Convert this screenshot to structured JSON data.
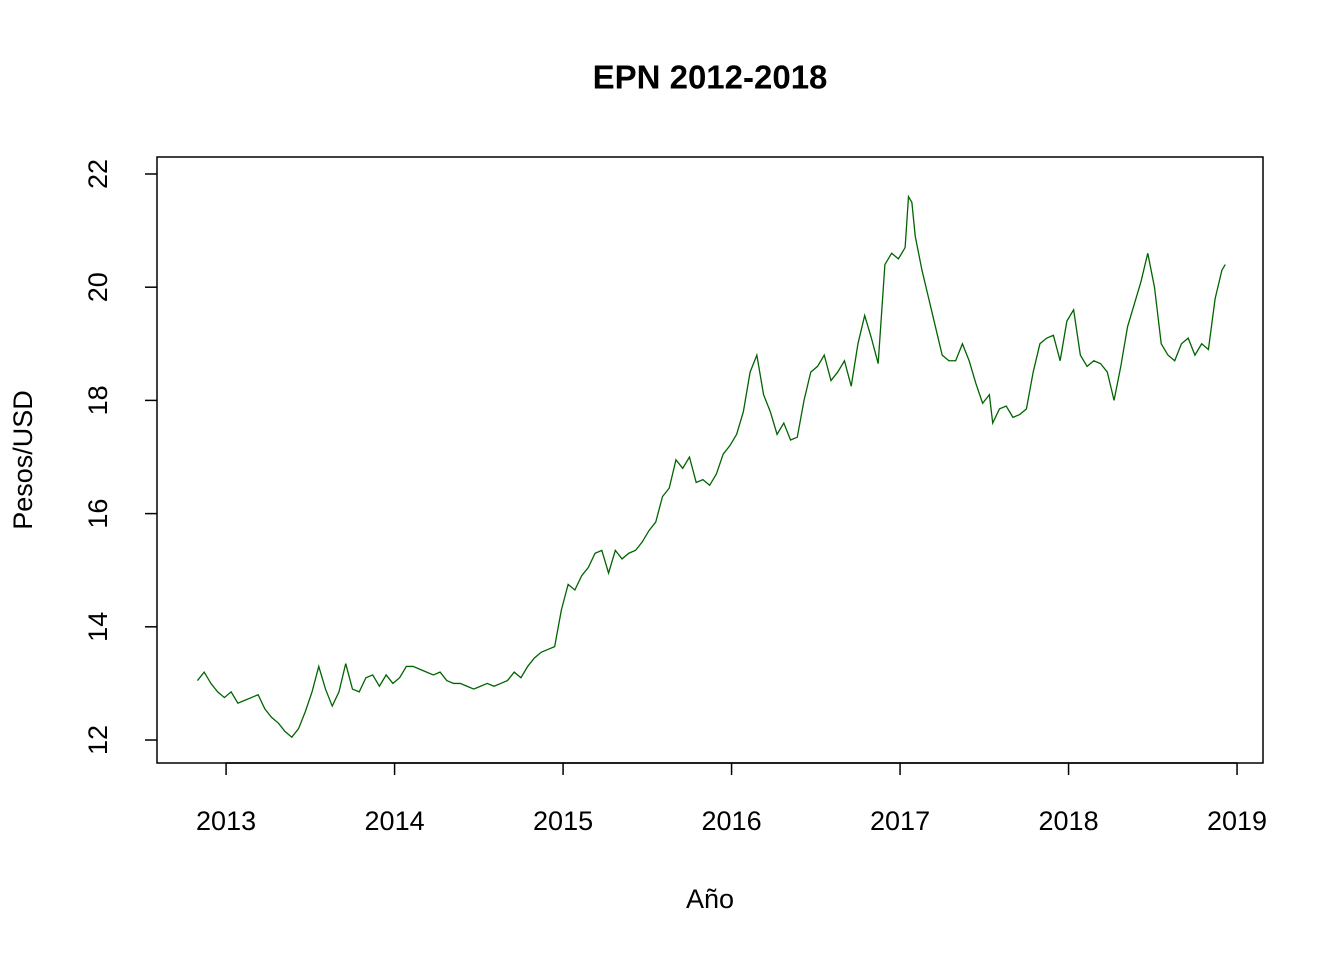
{
  "chart_data": {
    "type": "line",
    "title": "EPN 2012-2018",
    "x_label": "Año",
    "y_label": "Pesos/USD",
    "color": "#006400",
    "xlim": [
      2012.59,
      2019.154
    ],
    "ylim": [
      11.594,
      22.3
    ],
    "xticks": [
      2013,
      2014,
      2015,
      2016,
      2017,
      2018,
      2019
    ],
    "yticks": [
      12,
      14,
      16,
      18,
      20,
      22
    ],
    "x": [
      2012.83,
      2012.87,
      2012.91,
      2012.95,
      2012.99,
      2013.03,
      2013.07,
      2013.11,
      2013.15,
      2013.19,
      2013.23,
      2013.27,
      2013.31,
      2013.35,
      2013.39,
      2013.43,
      2013.47,
      2013.51,
      2013.55,
      2013.59,
      2013.63,
      2013.67,
      2013.71,
      2013.75,
      2013.79,
      2013.83,
      2013.87,
      2013.91,
      2013.95,
      2013.99,
      2014.03,
      2014.07,
      2014.11,
      2014.15,
      2014.19,
      2014.23,
      2014.27,
      2014.31,
      2014.35,
      2014.39,
      2014.43,
      2014.47,
      2014.51,
      2014.55,
      2014.59,
      2014.63,
      2014.67,
      2014.71,
      2014.75,
      2014.79,
      2014.83,
      2014.87,
      2014.91,
      2014.95,
      2014.99,
      2015.03,
      2015.07,
      2015.11,
      2015.15,
      2015.19,
      2015.23,
      2015.27,
      2015.31,
      2015.35,
      2015.39,
      2015.43,
      2015.47,
      2015.51,
      2015.55,
      2015.59,
      2015.63,
      2015.67,
      2015.71,
      2015.75,
      2015.79,
      2015.83,
      2015.87,
      2015.91,
      2015.95,
      2015.99,
      2016.03,
      2016.07,
      2016.11,
      2016.15,
      2016.19,
      2016.23,
      2016.27,
      2016.31,
      2016.35,
      2016.39,
      2016.43,
      2016.47,
      2016.51,
      2016.55,
      2016.59,
      2016.63,
      2016.67,
      2016.71,
      2016.75,
      2016.79,
      2016.83,
      2016.87,
      2016.91,
      2016.95,
      2016.99,
      2017.03,
      2017.05,
      2017.07,
      2017.09,
      2017.13,
      2017.17,
      2017.21,
      2017.25,
      2017.29,
      2017.33,
      2017.37,
      2017.41,
      2017.45,
      2017.49,
      2017.53,
      2017.55,
      2017.59,
      2017.63,
      2017.67,
      2017.71,
      2017.75,
      2017.79,
      2017.83,
      2017.87,
      2017.91,
      2017.95,
      2017.99,
      2018.03,
      2018.07,
      2018.11,
      2018.15,
      2018.19,
      2018.23,
      2018.27,
      2018.31,
      2018.35,
      2018.39,
      2018.43,
      2018.47,
      2018.51,
      2018.55,
      2018.59,
      2018.63,
      2018.67,
      2018.71,
      2018.75,
      2018.79,
      2018.83,
      2018.87,
      2018.91,
      2018.93
    ],
    "values": [
      13.05,
      13.2,
      13.0,
      12.85,
      12.75,
      12.85,
      12.65,
      12.7,
      12.75,
      12.8,
      12.55,
      12.4,
      12.3,
      12.15,
      12.05,
      12.2,
      12.5,
      12.85,
      13.3,
      12.9,
      12.6,
      12.85,
      13.35,
      12.9,
      12.85,
      13.1,
      13.15,
      12.95,
      13.15,
      13.0,
      13.1,
      13.3,
      13.3,
      13.25,
      13.2,
      13.15,
      13.2,
      13.05,
      13.0,
      13.0,
      12.95,
      12.9,
      12.95,
      13.0,
      12.95,
      13.0,
      13.05,
      13.2,
      13.1,
      13.3,
      13.45,
      13.55,
      13.6,
      13.65,
      14.3,
      14.75,
      14.65,
      14.9,
      15.05,
      15.3,
      15.35,
      14.95,
      15.35,
      15.2,
      15.3,
      15.35,
      15.5,
      15.7,
      15.85,
      16.3,
      16.45,
      16.95,
      16.8,
      17.0,
      16.55,
      16.6,
      16.5,
      16.7,
      17.05,
      17.2,
      17.4,
      17.8,
      18.5,
      18.8,
      18.1,
      17.8,
      17.4,
      17.6,
      17.3,
      17.35,
      18.0,
      18.5,
      18.6,
      18.8,
      18.35,
      18.5,
      18.7,
      18.25,
      19.0,
      19.5,
      19.1,
      18.65,
      20.4,
      20.6,
      20.5,
      20.7,
      21.6,
      21.5,
      20.9,
      20.3,
      19.8,
      19.3,
      18.8,
      18.7,
      18.7,
      19.0,
      18.7,
      18.3,
      17.95,
      18.1,
      17.6,
      17.85,
      17.9,
      17.7,
      17.75,
      17.85,
      18.5,
      19.0,
      19.1,
      19.15,
      18.7,
      19.4,
      19.6,
      18.8,
      18.6,
      18.7,
      18.65,
      18.5,
      18.0,
      18.6,
      19.3,
      19.7,
      20.1,
      20.6,
      20.0,
      19.0,
      18.8,
      18.7,
      19.0,
      19.1,
      18.8,
      19.0,
      18.9,
      19.8,
      20.3,
      20.4
    ]
  }
}
